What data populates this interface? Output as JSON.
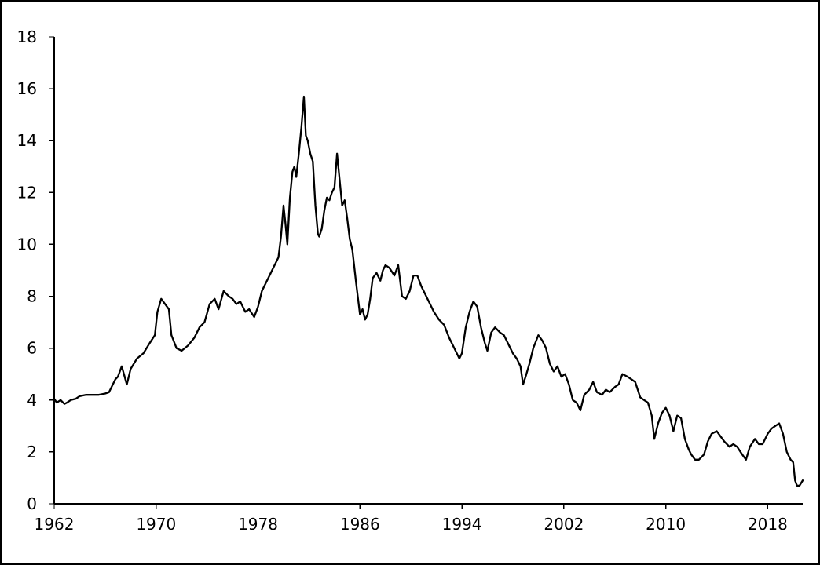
{
  "chart_data": {
    "type": "line",
    "title": "",
    "xlabel": "",
    "ylabel": "",
    "xlim": [
      1962,
      2020.75
    ],
    "ylim": [
      0,
      18
    ],
    "grid": false,
    "legend": "none",
    "x_ticks": [
      1962,
      1970,
      1978,
      1986,
      1994,
      2002,
      2010,
      2018
    ],
    "x_tick_labels": [
      "1962",
      "1970",
      "1978",
      "1986",
      "1994",
      "2002",
      "2010",
      "2018"
    ],
    "y_ticks": [
      0,
      2,
      4,
      6,
      8,
      10,
      12,
      14,
      16,
      18
    ],
    "y_tick_labels": [
      "0",
      "2",
      "4",
      "6",
      "8",
      "10",
      "12",
      "14",
      "16",
      "18"
    ],
    "series": [
      {
        "color": "#000000",
        "x": [
          1962.0,
          1962.2,
          1962.5,
          1962.8,
          1963.0,
          1963.3,
          1963.7,
          1964.0,
          1964.5,
          1965.0,
          1965.5,
          1966.0,
          1966.3,
          1966.8,
          1967.0,
          1967.3,
          1967.7,
          1968.0,
          1968.5,
          1969.0,
          1969.5,
          1969.9,
          1970.1,
          1970.4,
          1970.7,
          1971.0,
          1971.2,
          1971.6,
          1972.0,
          1972.5,
          1973.0,
          1973.4,
          1973.8,
          1974.2,
          1974.6,
          1974.9,
          1975.3,
          1975.7,
          1976.0,
          1976.3,
          1976.6,
          1977.0,
          1977.3,
          1977.7,
          1978.0,
          1978.3,
          1978.7,
          1979.0,
          1979.3,
          1979.6,
          1979.8,
          1980.0,
          1980.15,
          1980.3,
          1980.5,
          1980.7,
          1980.85,
          1981.0,
          1981.2,
          1981.4,
          1981.6,
          1981.75,
          1981.9,
          1982.1,
          1982.3,
          1982.5,
          1982.7,
          1982.8,
          1983.0,
          1983.2,
          1983.4,
          1983.6,
          1983.8,
          1984.0,
          1984.2,
          1984.4,
          1984.6,
          1984.8,
          1985.0,
          1985.2,
          1985.4,
          1985.7,
          1986.0,
          1986.2,
          1986.4,
          1986.6,
          1986.8,
          1987.0,
          1987.3,
          1987.6,
          1987.8,
          1988.0,
          1988.3,
          1988.7,
          1989.0,
          1989.3,
          1989.6,
          1989.9,
          1990.2,
          1990.5,
          1990.8,
          1991.0,
          1991.4,
          1991.8,
          1992.2,
          1992.6,
          1993.0,
          1993.4,
          1993.8,
          1994.0,
          1994.3,
          1994.6,
          1994.9,
          1995.2,
          1995.5,
          1995.8,
          1996.0,
          1996.3,
          1996.6,
          1997.0,
          1997.3,
          1997.6,
          1998.0,
          1998.3,
          1998.6,
          1998.8,
          1999.0,
          1999.3,
          1999.6,
          2000.0,
          2000.3,
          2000.6,
          2000.9,
          2001.2,
          2001.5,
          2001.8,
          2002.1,
          2002.4,
          2002.7,
          2003.0,
          2003.3,
          2003.6,
          2004.0,
          2004.3,
          2004.6,
          2005.0,
          2005.3,
          2005.6,
          2006.0,
          2006.3,
          2006.6,
          2007.0,
          2007.3,
          2007.6,
          2008.0,
          2008.3,
          2008.6,
          2008.9,
          2009.1,
          2009.4,
          2009.7,
          2010.0,
          2010.3,
          2010.6,
          2010.9,
          2011.2,
          2011.5,
          2011.8,
          2012.0,
          2012.3,
          2012.6,
          2013.0,
          2013.3,
          2013.6,
          2014.0,
          2014.3,
          2014.6,
          2015.0,
          2015.3,
          2015.6,
          2016.0,
          2016.3,
          2016.6,
          2017.0,
          2017.3,
          2017.6,
          2018.0,
          2018.3,
          2018.6,
          2018.9,
          2019.2,
          2019.5,
          2019.8,
          2020.0,
          2020.15,
          2020.3,
          2020.5,
          2020.75
        ],
        "y": [
          4.05,
          3.9,
          4.0,
          3.85,
          3.9,
          4.0,
          4.05,
          4.15,
          4.2,
          4.2,
          4.2,
          4.25,
          4.3,
          4.8,
          4.9,
          5.3,
          4.6,
          5.2,
          5.6,
          5.8,
          6.2,
          6.5,
          7.4,
          7.9,
          7.7,
          7.5,
          6.5,
          6.0,
          5.9,
          6.1,
          6.4,
          6.8,
          7.0,
          7.7,
          7.9,
          7.5,
          8.2,
          8.0,
          7.9,
          7.7,
          7.8,
          7.4,
          7.5,
          7.2,
          7.6,
          8.2,
          8.6,
          8.9,
          9.2,
          9.5,
          10.3,
          11.5,
          10.8,
          10.0,
          11.8,
          12.8,
          13.0,
          12.6,
          13.5,
          14.5,
          15.7,
          14.2,
          14.0,
          13.5,
          13.2,
          11.5,
          10.4,
          10.3,
          10.6,
          11.3,
          11.8,
          11.7,
          12.0,
          12.2,
          13.5,
          12.5,
          11.5,
          11.7,
          11.0,
          10.2,
          9.8,
          8.5,
          7.3,
          7.5,
          7.1,
          7.3,
          7.9,
          8.7,
          8.9,
          8.6,
          9.0,
          9.2,
          9.1,
          8.8,
          9.2,
          8.0,
          7.9,
          8.2,
          8.8,
          8.8,
          8.4,
          8.2,
          7.8,
          7.4,
          7.1,
          6.9,
          6.4,
          6.0,
          5.6,
          5.8,
          6.8,
          7.4,
          7.8,
          7.6,
          6.8,
          6.2,
          5.9,
          6.6,
          6.8,
          6.6,
          6.5,
          6.2,
          5.8,
          5.6,
          5.3,
          4.6,
          4.9,
          5.4,
          6.0,
          6.5,
          6.3,
          6.0,
          5.4,
          5.1,
          5.3,
          4.9,
          5.0,
          4.6,
          4.0,
          3.9,
          3.6,
          4.2,
          4.4,
          4.7,
          4.3,
          4.2,
          4.4,
          4.3,
          4.5,
          4.6,
          5.0,
          4.9,
          4.8,
          4.7,
          4.1,
          4.0,
          3.9,
          3.4,
          2.5,
          3.1,
          3.5,
          3.7,
          3.4,
          2.8,
          3.4,
          3.3,
          2.5,
          2.1,
          1.9,
          1.7,
          1.7,
          1.9,
          2.4,
          2.7,
          2.8,
          2.6,
          2.4,
          2.2,
          2.3,
          2.2,
          1.9,
          1.7,
          2.2,
          2.5,
          2.3,
          2.3,
          2.7,
          2.9,
          3.0,
          3.1,
          2.7,
          2.0,
          1.7,
          1.6,
          0.9,
          0.7,
          0.7,
          0.9
        ]
      }
    ]
  }
}
